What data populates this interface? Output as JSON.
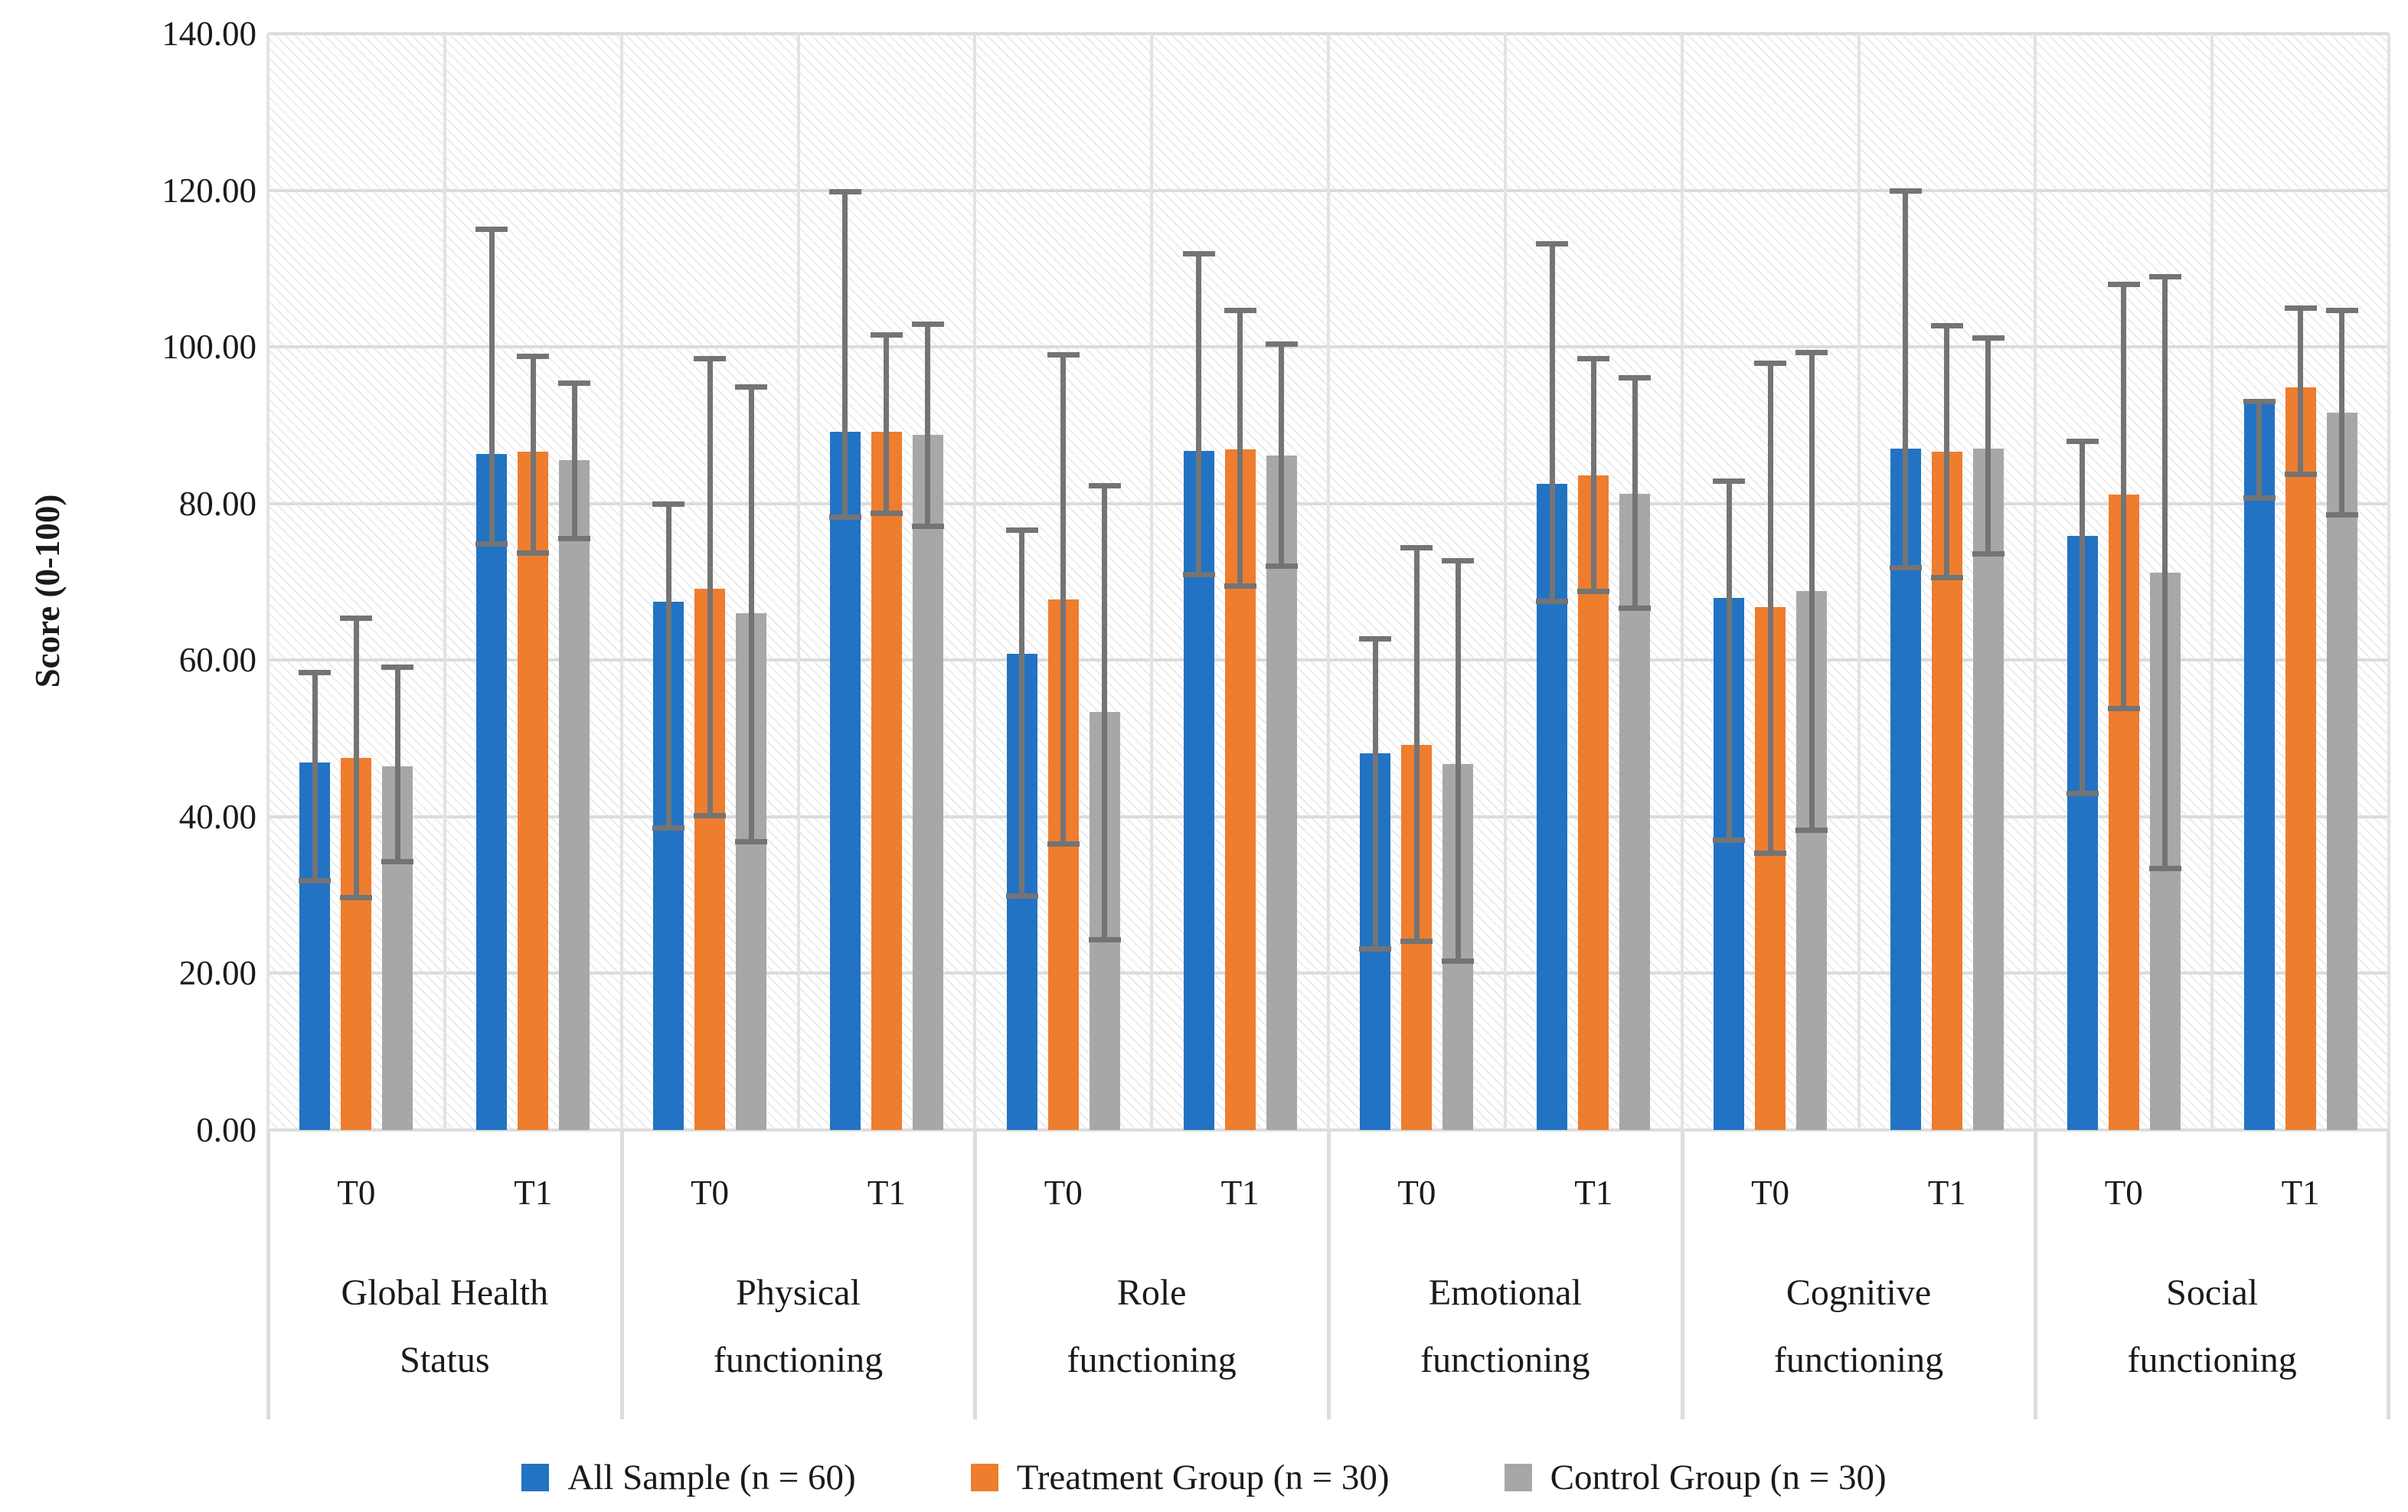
{
  "figure": {
    "background": "#ffffff",
    "text_color": "#1a1a1a"
  },
  "chart_data": {
    "type": "bar",
    "title": "",
    "xlabel": "",
    "ylabel": "Score (0-100)",
    "ylim": [
      0,
      140
    ],
    "ytick_step": 20,
    "yticks": [
      "140.00",
      "120.00",
      "100.00",
      "80.00",
      "60.00",
      "40.00",
      "20.00",
      "0.00"
    ],
    "grid": true,
    "plot_background_pattern": "diagonal-hatch",
    "gridline_color": "#dcdcdc",
    "error_bar_color": "#747474",
    "legend_position": "bottom",
    "series": [
      {
        "name": "All Sample (n = 60)",
        "color": "#2273c3"
      },
      {
        "name": "Treatment Group (n = 30)",
        "color": "#ee7d2e"
      },
      {
        "name": "Control Group (n = 30)",
        "color": "#a7a7a7"
      }
    ],
    "categories": [
      {
        "label": "Global Health Status",
        "label_lines": [
          "Global Health",
          "Status"
        ],
        "ticks": [
          {
            "label": "T0",
            "values": [
              46.9,
              47.5,
              46.4
            ],
            "err_low": [
              31.5,
              29.3,
              33.9
            ],
            "err_high": [
              58.8,
              65.7,
              59.4
            ]
          },
          {
            "label": "T1",
            "values": [
              86.3,
              86.6,
              85.5
            ],
            "err_low": [
              74.5,
              73.3,
              75.2
            ],
            "err_high": [
              115.4,
              99.1,
              95.7
            ]
          }
        ]
      },
      {
        "label": "Physical functioning",
        "label_lines": [
          "Physical",
          "functioning"
        ],
        "ticks": [
          {
            "label": "T0",
            "values": [
              67.5,
              69.1,
              66.0
            ],
            "err_low": [
              38.2,
              39.8,
              36.5
            ],
            "err_high": [
              80.3,
              98.8,
              95.2
            ]
          },
          {
            "label": "T1",
            "values": [
              89.2,
              89.2,
              88.8
            ],
            "err_low": [
              77.9,
              78.4,
              76.7
            ],
            "err_high": [
              120.2,
              101.9,
              103.2
            ]
          }
        ]
      },
      {
        "label": "Role functioning",
        "label_lines": [
          "Role",
          "functioning"
        ],
        "ticks": [
          {
            "label": "T0",
            "values": [
              60.8,
              67.8,
              53.4
            ],
            "err_low": [
              29.5,
              36.2,
              24.0
            ],
            "err_high": [
              76.9,
              99.3,
              82.6
            ]
          },
          {
            "label": "T1",
            "values": [
              86.7,
              86.9,
              86.1
            ],
            "err_low": [
              70.6,
              69.1,
              71.7
            ],
            "err_high": [
              112.2,
              105.0,
              100.7
            ]
          }
        ]
      },
      {
        "label": "Emotional functioning",
        "label_lines": [
          "Emotional",
          "functioning"
        ],
        "ticks": [
          {
            "label": "T0",
            "values": [
              48.1,
              49.2,
              46.7
            ],
            "err_low": [
              22.8,
              23.8,
              21.2
            ],
            "err_high": [
              63.1,
              74.7,
              73.0
            ]
          },
          {
            "label": "T1",
            "values": [
              82.5,
              83.6,
              81.2
            ],
            "err_low": [
              67.2,
              68.4,
              66.3
            ],
            "err_high": [
              113.5,
              98.8,
              96.4
            ]
          }
        ]
      },
      {
        "label": "Cognitive functioning",
        "label_lines": [
          "Cognitive",
          "functioning"
        ],
        "ticks": [
          {
            "label": "T0",
            "values": [
              67.9,
              66.8,
              68.8
            ],
            "err_low": [
              36.7,
              35.0,
              37.9
            ],
            "err_high": [
              83.2,
              98.3,
              99.6
            ]
          },
          {
            "label": "T1",
            "values": [
              87.0,
              86.6,
              87.0
            ],
            "err_low": [
              71.5,
              70.2,
              73.2
            ],
            "err_high": [
              120.3,
              103.0,
              101.5
            ]
          }
        ]
      },
      {
        "label": "Social functioning",
        "label_lines": [
          "Social",
          "functioning"
        ],
        "ticks": [
          {
            "label": "T0",
            "values": [
              75.9,
              81.1,
              71.2
            ],
            "err_low": [
              42.6,
              53.5,
              33.0
            ],
            "err_high": [
              88.3,
              108.3,
              109.3
            ]
          },
          {
            "label": "T1",
            "values": [
              93.0,
              94.8,
              91.6
            ],
            "err_low": [
              80.4,
              83.4,
              78.2
            ],
            "err_high": [
              93.4,
              105.3,
              105.0
            ]
          }
        ]
      }
    ]
  }
}
